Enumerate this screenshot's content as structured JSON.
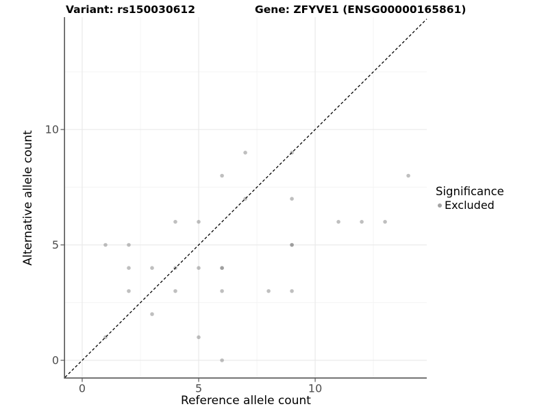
{
  "header": {
    "variant_title": "Variant: rs150030612",
    "gene_title": "Gene: ZFYVE1 (ENSG00000165861)"
  },
  "chart_data": {
    "type": "scatter",
    "xlabel": "Reference allele count",
    "ylabel": "Alternative allele count",
    "xlim": [
      -0.735,
      14.79
    ],
    "ylim": [
      -0.742,
      14.87
    ],
    "x_ticks": [
      0,
      5,
      10
    ],
    "y_ticks": [
      0,
      5,
      10
    ],
    "x_minor_ticks": [
      2.5,
      7.5,
      12.5
    ],
    "y_minor_ticks": [
      2.5,
      7.5,
      12.5
    ],
    "tick_labels": {
      "x": [
        "0",
        "5",
        "10"
      ],
      "y": [
        "0",
        "5",
        "10"
      ]
    },
    "grid": "major and minor gridlines, light gray on white panel",
    "identity_line": {
      "type": "y = x",
      "style": "dashed",
      "color": "#000000"
    },
    "series": [
      {
        "name": "Excluded",
        "color": "#7f7f7f",
        "opacity": 0.5,
        "points": [
          [
            1,
            1
          ],
          [
            1,
            5
          ],
          [
            2,
            3
          ],
          [
            2,
            4
          ],
          [
            2,
            5
          ],
          [
            3,
            2
          ],
          [
            3,
            4
          ],
          [
            4,
            3
          ],
          [
            4,
            4
          ],
          [
            4,
            6
          ],
          [
            5,
            1
          ],
          [
            5,
            4
          ],
          [
            5,
            6
          ],
          [
            6,
            0
          ],
          [
            6,
            3
          ],
          [
            6,
            4
          ],
          [
            6,
            4
          ],
          [
            6,
            8
          ],
          [
            7,
            7
          ],
          [
            7,
            9
          ],
          [
            8,
            3
          ],
          [
            9,
            3
          ],
          [
            9,
            5
          ],
          [
            9,
            5
          ],
          [
            9,
            7
          ],
          [
            9,
            9
          ],
          [
            11,
            6
          ],
          [
            12,
            6
          ],
          [
            13,
            6
          ],
          [
            14,
            8
          ]
        ]
      }
    ],
    "legend": {
      "title": "Significance",
      "position": "right",
      "items": [
        {
          "label": "Excluded",
          "marker_color": "#a3a3a3"
        }
      ]
    }
  },
  "colors": {
    "background": "#ffffff",
    "grid_major": "#e9e9e9",
    "grid_minor": "#f4f4f4",
    "axis_line": "#555555",
    "tick_text": "#4d4d4d",
    "point": "#7f7f7f"
  }
}
